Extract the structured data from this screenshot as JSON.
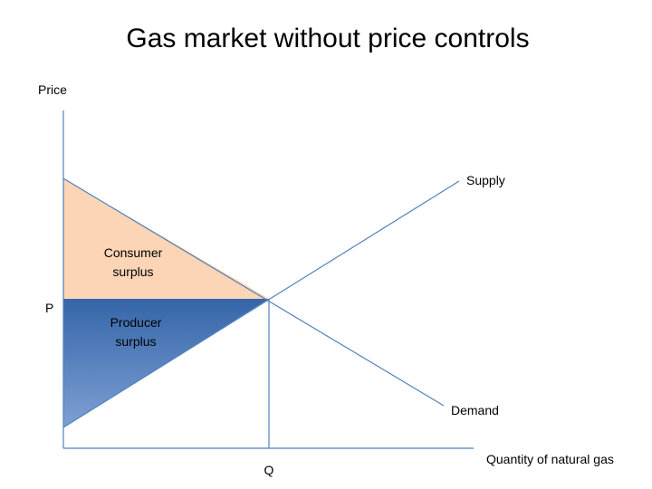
{
  "title": "Gas market without price controls",
  "axes": {
    "y_label": "Price",
    "x_label": "Quantity of natural gas",
    "price_mark": "P",
    "quantity_mark": "Q"
  },
  "curves": {
    "supply": "Supply",
    "demand": "Demand"
  },
  "areas": {
    "consumer_surplus": [
      "Consumer",
      "surplus"
    ],
    "producer_surplus": [
      "Producer",
      "surplus"
    ]
  }
}
